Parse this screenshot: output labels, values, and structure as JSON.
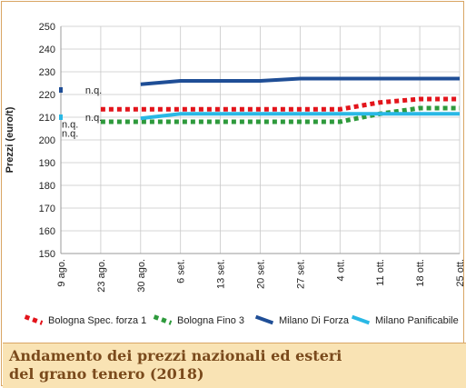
{
  "chart_data": {
    "type": "line",
    "title": "Andamento dei prezzi nazionali ed esteri del grano tenero (2018)",
    "title_lines": [
      "Andamento dei prezzi nazionali ed esteri",
      "del grano tenero (2018)"
    ],
    "xlabel": "",
    "ylabel": "Prezzi (euro/t)",
    "ylim": [
      150,
      250
    ],
    "yticks": [
      150,
      160,
      170,
      180,
      190,
      200,
      210,
      220,
      230,
      240,
      250
    ],
    "categories": [
      "9 ago.",
      "23 ago.",
      "30 ago.",
      "6 set.",
      "13 set.",
      "20 set.",
      "27 set.",
      "4 ott.",
      "11 ott.",
      "18 ott.",
      "25 ott."
    ],
    "grid": true,
    "legend_position": "bottom",
    "series": [
      {
        "name": "Bologna Spec. forza 1",
        "color": "#e3141b",
        "style": "dotted",
        "values": [
          null,
          213.5,
          213.5,
          213.5,
          213.5,
          213.5,
          213.5,
          213.5,
          216.5,
          218,
          218
        ]
      },
      {
        "name": "Bologna Fino 3",
        "color": "#2e9a3c",
        "style": "dotted",
        "values": [
          null,
          208,
          208,
          208,
          208,
          208,
          208,
          208,
          211.5,
          214,
          214
        ]
      },
      {
        "name": "Milano Di Forza",
        "color": "#1f4e96",
        "style": "solid",
        "values": [
          222,
          null,
          224.5,
          226,
          226,
          226,
          227,
          227,
          227,
          227,
          227
        ]
      },
      {
        "name": "Milano Panificabile",
        "color": "#29b8e5",
        "style": "solid",
        "values": [
          210,
          null,
          209.5,
          211.5,
          211.5,
          211.5,
          211.5,
          211.5,
          211.5,
          211.5,
          211.5
        ]
      }
    ],
    "annotations": [
      {
        "text": "n.q.",
        "x": "23 ago.",
        "y": 222
      },
      {
        "text": "n.q.",
        "x": "23 ago.",
        "y": 210
      },
      {
        "text": "n.q.",
        "x": "9 ago.",
        "y": 207
      },
      {
        "text": "n.q.",
        "x": "9 ago.",
        "y": 203
      }
    ]
  }
}
